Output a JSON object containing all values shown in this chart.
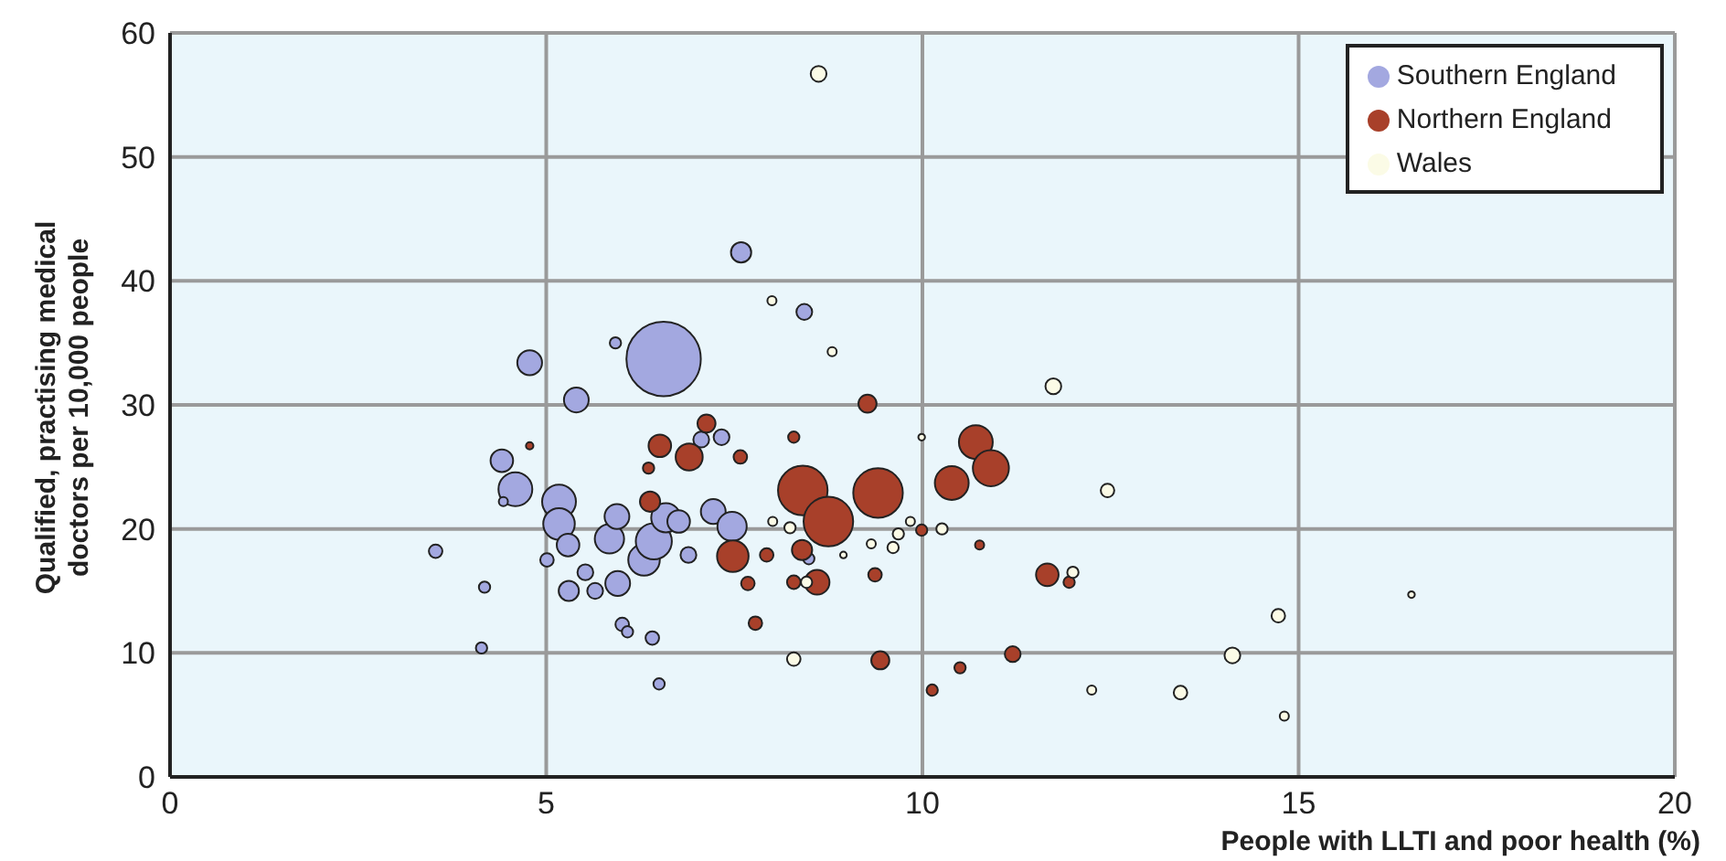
{
  "chart_data": {
    "type": "bubble",
    "xlabel": "People with LLTI and poor health (%)",
    "ylabel": "Qualified, practising medical doctors per 10,000 people",
    "xlim": [
      0,
      20
    ],
    "xticks": [
      0,
      5,
      10,
      15,
      20
    ],
    "ylim": [
      0,
      60
    ],
    "yticks": [
      0,
      10,
      20,
      30,
      40,
      50,
      60
    ],
    "grid": true,
    "legend": "top right",
    "series": [
      {
        "name": "Southern England",
        "color": "#a3a8e0",
        "x": [
          6.56,
          7.59,
          8.43,
          4.78,
          5.4,
          5.92,
          4.41,
          4.59,
          4.43,
          3.53,
          4.18,
          4.14,
          5.17,
          5.17,
          5.01,
          5.29,
          5.3,
          5.52,
          5.65,
          5.84,
          5.94,
          5.95,
          6.3,
          6.43,
          6.59,
          6.76,
          6.01,
          6.08,
          6.41,
          6.5,
          7.22,
          7.47,
          7.06,
          7.33,
          6.89,
          8.49
        ],
        "values": [
          33.7,
          42.3,
          37.5,
          33.4,
          30.4,
          35.0,
          25.5,
          23.2,
          22.2,
          18.2,
          15.3,
          10.4,
          22.2,
          20.4,
          17.5,
          18.7,
          15.0,
          16.5,
          15.0,
          19.2,
          21.0,
          15.6,
          17.5,
          19.0,
          20.9,
          20.6,
          12.3,
          11.7,
          11.2,
          7.5,
          21.4,
          20.2,
          27.2,
          27.4,
          17.9,
          17.6
        ],
        "sizes": [
          1,
          0.074,
          0.045,
          0.111,
          0.111,
          0.023,
          0.092,
          0.207,
          0.015,
          0.033,
          0.023,
          0.023,
          0.207,
          0.18,
          0.033,
          0.092,
          0.074,
          0.045,
          0.045,
          0.155,
          0.111,
          0.111,
          0.18,
          0.235,
          0.155,
          0.092,
          0.033,
          0.023,
          0.033,
          0.023,
          0.111,
          0.155,
          0.045,
          0.045,
          0.045,
          0.023
        ]
      },
      {
        "name": "Northern England",
        "color": "#a8402a",
        "x": [
          4.78,
          6.51,
          6.38,
          6.9,
          6.36,
          7.13,
          7.58,
          7.48,
          7.68,
          7.78,
          7.93,
          8.29,
          8.41,
          8.75,
          9.41,
          9.27,
          8.4,
          8.6,
          8.29,
          9.37,
          9.44,
          9.99,
          10.39,
          10.71,
          10.91,
          10.76,
          11.66,
          11.95,
          11.2,
          10.5,
          10.13
        ],
        "values": [
          26.7,
          26.7,
          22.2,
          25.8,
          24.9,
          28.5,
          25.8,
          17.8,
          15.6,
          12.4,
          17.9,
          27.4,
          23.1,
          20.6,
          22.9,
          30.1,
          18.3,
          15.7,
          15.7,
          16.3,
          9.4,
          19.9,
          23.7,
          27.0,
          24.9,
          18.7,
          16.3,
          15.7,
          9.9,
          8.8,
          7.0
        ],
        "sizes": [
          0.01,
          0.092,
          0.074,
          0.132,
          0.023,
          0.059,
          0.033,
          0.18,
          0.033,
          0.033,
          0.033,
          0.023,
          0.444,
          0.444,
          0.444,
          0.059,
          0.074,
          0.111,
          0.033,
          0.033,
          0.059,
          0.023,
          0.207,
          0.207,
          0.235,
          0.015,
          0.092,
          0.023,
          0.045,
          0.023,
          0.023
        ]
      },
      {
        "name": "Wales",
        "color": "#fbfbe6",
        "x": [
          8.62,
          8.0,
          8.8,
          11.74,
          9.99,
          12.46,
          8.24,
          8.01,
          8.95,
          9.68,
          9.61,
          10.26,
          9.84,
          9.32,
          12.0,
          8.29,
          12.25,
          13.43,
          14.12,
          14.73,
          14.81,
          16.5,
          8.46
        ],
        "values": [
          56.7,
          38.4,
          34.3,
          31.5,
          27.4,
          23.1,
          20.1,
          20.6,
          17.9,
          19.6,
          18.5,
          20.0,
          20.6,
          18.8,
          16.5,
          9.5,
          7.0,
          6.8,
          9.8,
          13.0,
          4.9,
          14.7,
          15.7
        ],
        "sizes": [
          0.045,
          0.015,
          0.015,
          0.045,
          0.008,
          0.033,
          0.023,
          0.015,
          0.008,
          0.023,
          0.023,
          0.023,
          0.015,
          0.015,
          0.023,
          0.033,
          0.015,
          0.033,
          0.045,
          0.033,
          0.015,
          0.008,
          0.023
        ]
      }
    ]
  }
}
